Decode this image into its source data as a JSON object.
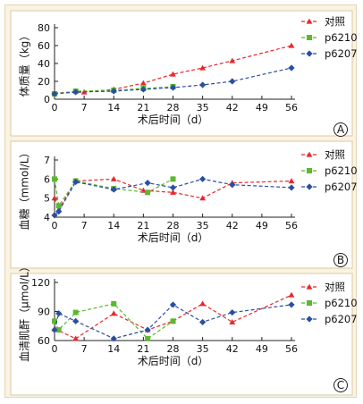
{
  "colors": {
    "对照": "#e8282b",
    "p6210": "#5bb82f",
    "p6207": "#2a4fa2"
  },
  "chart_data": [
    {
      "panel": "A",
      "type": "line",
      "ylabel": "体质量（kg）",
      "xlabel": "术后时间（d）",
      "ylim": [
        0,
        80
      ],
      "yticks": [
        0,
        20,
        40,
        60,
        80
      ],
      "xlim": [
        0,
        56
      ],
      "xticks": [
        0,
        7,
        14,
        21,
        28,
        35,
        42,
        49,
        56
      ],
      "legend": "top-right",
      "series": [
        {
          "name": "对照",
          "marker": "triangle",
          "x": [
            0,
            7,
            14,
            21,
            28,
            35,
            42,
            56
          ],
          "y": [
            7,
            8,
            11,
            18,
            28,
            35,
            43,
            60
          ]
        },
        {
          "name": "p6210",
          "marker": "square",
          "x": [
            0,
            5,
            14,
            21,
            28
          ],
          "y": [
            6,
            9,
            10,
            12,
            14
          ]
        },
        {
          "name": "p6207",
          "marker": "diamond",
          "x": [
            0,
            5,
            14,
            21,
            28,
            35,
            42,
            56
          ],
          "y": [
            6,
            8,
            9,
            11,
            13,
            16,
            20,
            35
          ]
        }
      ]
    },
    {
      "panel": "B",
      "type": "line",
      "ylabel": "血糖（mmol/L）",
      "xlabel": "术后时间（d）",
      "ylim": [
        4,
        7
      ],
      "yticks": [
        4,
        5,
        6,
        7
      ],
      "xlim": [
        0,
        56
      ],
      "xticks": [
        0,
        7,
        14,
        21,
        28,
        35,
        42,
        49,
        56
      ],
      "legend": "top-right",
      "series": [
        {
          "name": "对照",
          "marker": "triangle",
          "x": [
            0,
            1,
            5,
            14,
            21,
            28,
            35,
            42,
            56
          ],
          "y": [
            5.0,
            4.4,
            5.9,
            6.0,
            5.4,
            5.3,
            5.0,
            5.8,
            5.9
          ]
        },
        {
          "name": "p6210",
          "marker": "square",
          "x": [
            0,
            1,
            5,
            14,
            22,
            28
          ],
          "y": [
            6.0,
            4.6,
            5.9,
            5.5,
            5.3,
            6.0
          ]
        },
        {
          "name": "p6207",
          "marker": "diamond",
          "x": [
            0,
            1,
            5,
            14,
            22,
            28,
            35,
            42,
            56
          ],
          "y": [
            4.1,
            4.3,
            5.85,
            5.45,
            5.8,
            5.55,
            6.0,
            5.7,
            5.55
          ]
        }
      ]
    },
    {
      "panel": "C",
      "type": "line",
      "ylabel": "血清肌酐（μmol/L）",
      "xlabel": "术后时间（d）",
      "ylim": [
        60,
        120
      ],
      "yticks": [
        60,
        90,
        120
      ],
      "xlim": [
        0,
        56
      ],
      "xticks": [
        0,
        7,
        14,
        21,
        28,
        35,
        42,
        49,
        56
      ],
      "legend": "top-right",
      "series": [
        {
          "name": "对照",
          "marker": "triangle",
          "x": [
            0,
            5,
            14,
            22,
            28,
            35,
            42,
            56
          ],
          "y": [
            72,
            62,
            88,
            71,
            80,
            98,
            79,
            107
          ]
        },
        {
          "name": "p6210",
          "marker": "square",
          "x": [
            0,
            1,
            5,
            14,
            22,
            28
          ],
          "y": [
            80,
            71,
            89,
            98,
            62,
            80
          ]
        },
        {
          "name": "p6207",
          "marker": "diamond",
          "x": [
            0,
            1,
            5,
            14,
            22,
            28,
            35,
            42,
            56
          ],
          "y": [
            71,
            88,
            80,
            62,
            71,
            97,
            79,
            89,
            97
          ]
        }
      ]
    }
  ]
}
